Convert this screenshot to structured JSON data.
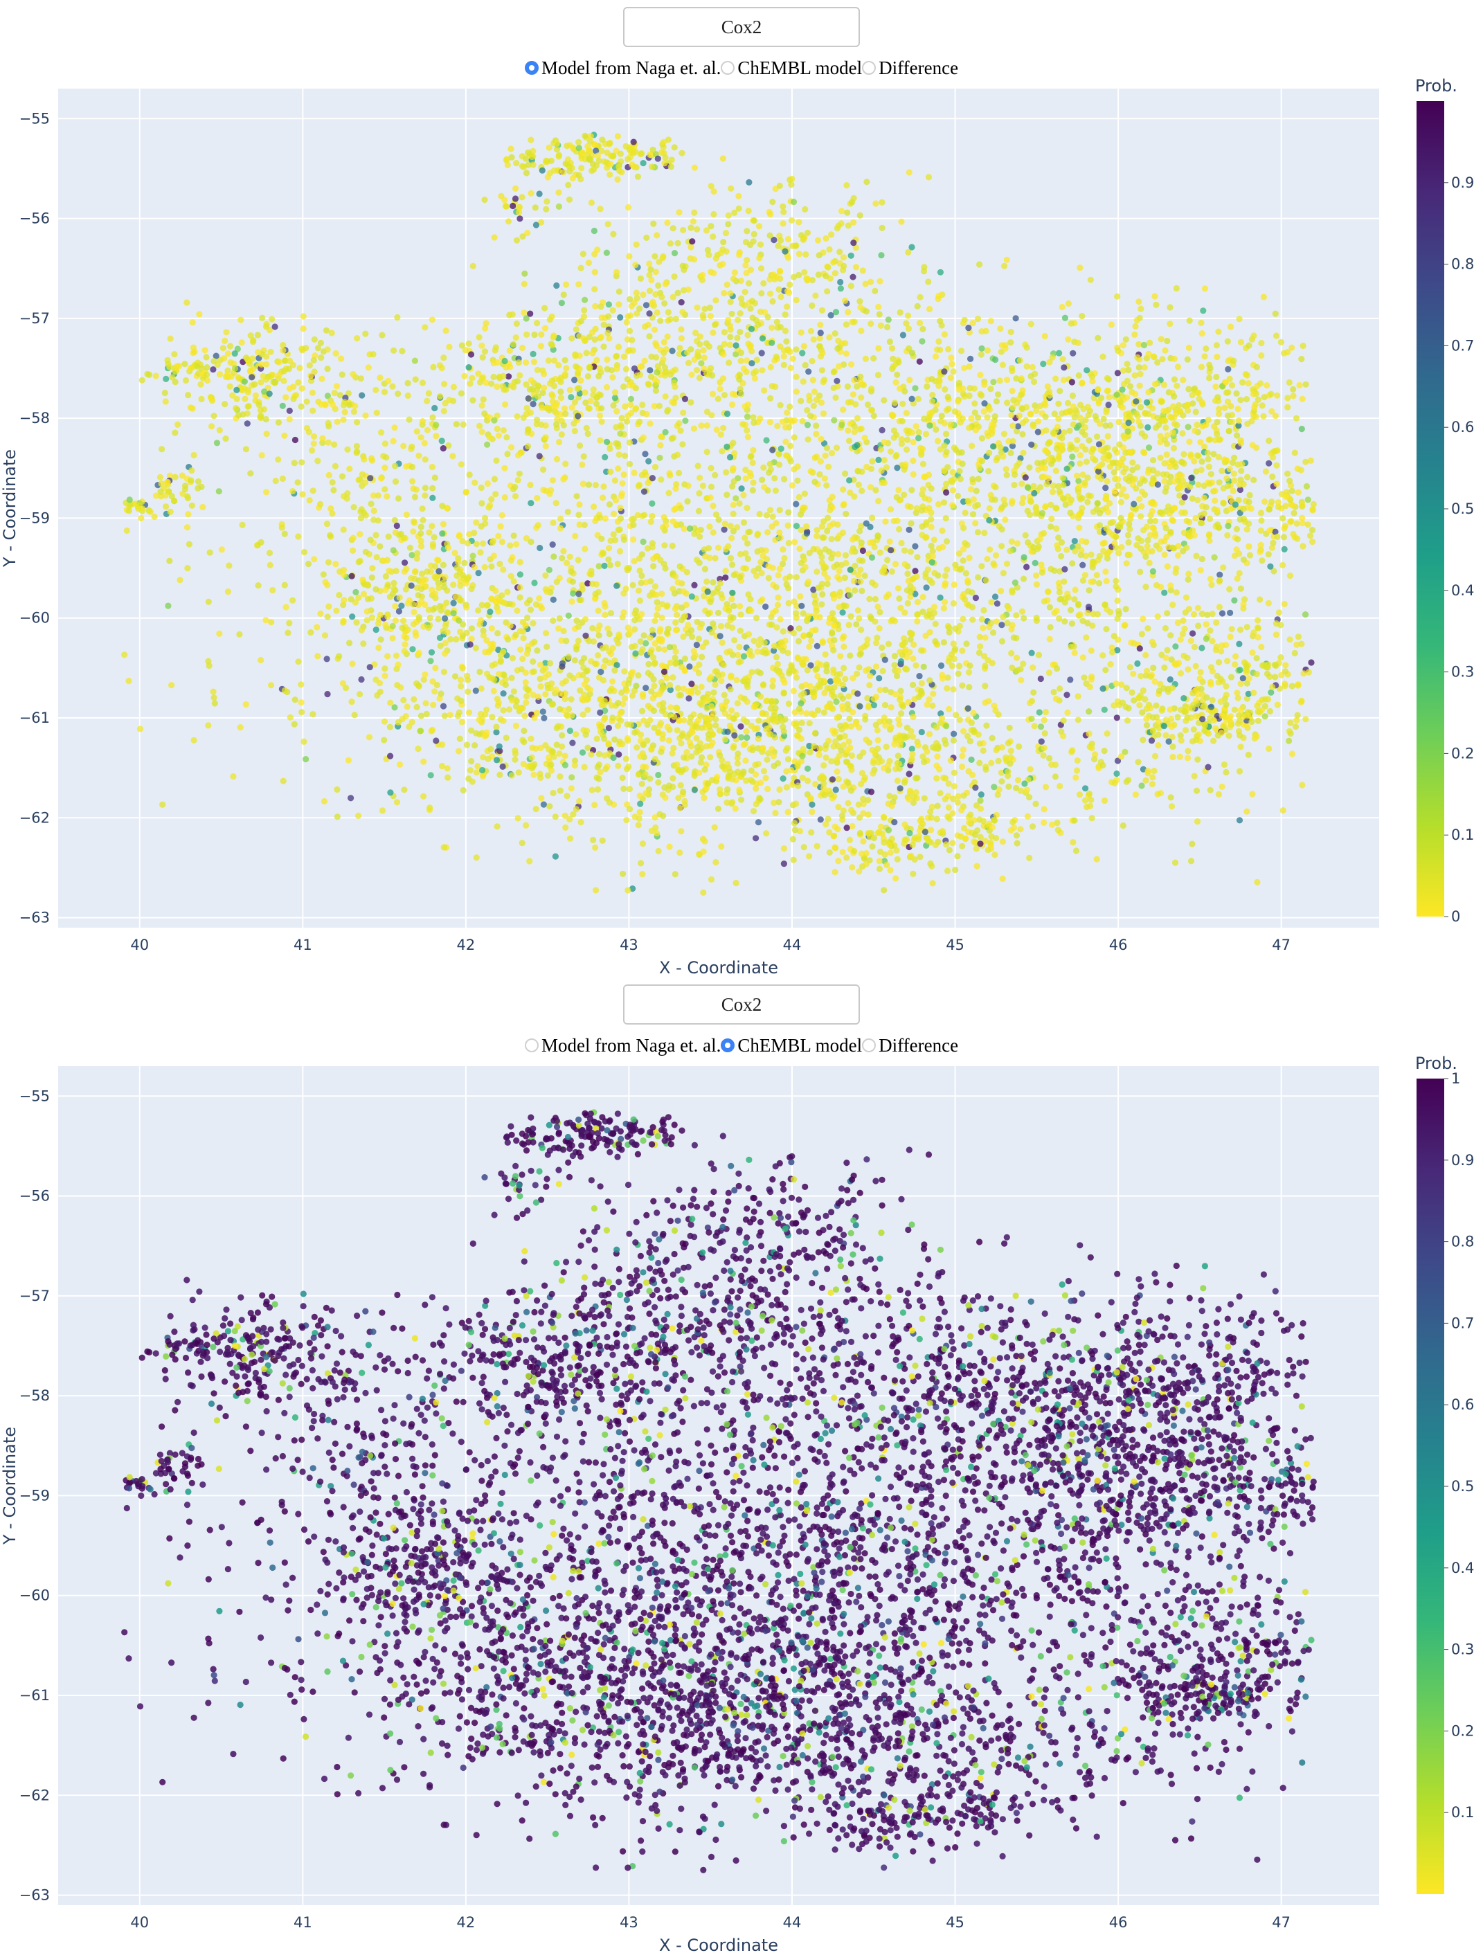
{
  "colors": {
    "plot_bg": "#e5ecf6",
    "grid": "#ffffff",
    "axis_text": "#2a3f5f",
    "viridis": [
      "#fde725",
      "#b5de2b",
      "#6ece58",
      "#35b779",
      "#1f9e89",
      "#26828e",
      "#31688e",
      "#3e4989",
      "#482878",
      "#440154"
    ]
  },
  "panels": [
    {
      "dropdown_label": "Cox2",
      "radio_options": [
        "Model from Naga et. al.",
        "ChEMBL model",
        "Difference"
      ],
      "selected_index": 0
    },
    {
      "dropdown_label": "Cox2",
      "radio_options": [
        "Model from Naga et. al.",
        "ChEMBL model",
        "Difference"
      ],
      "selected_index": 1
    }
  ],
  "chart_data": [
    {
      "type": "scatter",
      "title": "",
      "xlabel": "X - Coordinate",
      "ylabel": "Y - Coordinate",
      "xlim": [
        39.5,
        47.6
      ],
      "ylim": [
        -63.1,
        -54.7
      ],
      "xticks": [
        40,
        41,
        42,
        43,
        44,
        45,
        46,
        47
      ],
      "yticks": [
        -55,
        -56,
        -57,
        -58,
        -59,
        -60,
        -61,
        -62,
        -63
      ],
      "colorbar": {
        "title": "Prob.",
        "range": [
          0,
          1
        ],
        "ticks": [
          0,
          0.1,
          0.2,
          0.3,
          0.4,
          0.5,
          0.6,
          0.7,
          0.8,
          0.9
        ],
        "tick_labels": [
          "0",
          "0.1",
          "0.2",
          "0.3",
          "0.4",
          "0.5",
          "0.6",
          "0.7",
          "0.8",
          "0.9"
        ]
      },
      "series": [
        {
          "name": "Model from Naga et. al.",
          "color_by": "Prob.",
          "dominant_prob": 0.0,
          "note": "mostly near 0 with scattered high-probability points"
        }
      ],
      "clusters": [
        {
          "x": 44.0,
          "y": -59.6,
          "sx": 1.6,
          "sy": 1.15,
          "n": 2600
        },
        {
          "x": 43.1,
          "y": -60.9,
          "sx": 0.9,
          "sy": 0.55,
          "n": 700
        },
        {
          "x": 44.3,
          "y": -61.5,
          "sx": 0.9,
          "sy": 0.45,
          "n": 600
        },
        {
          "x": 45.6,
          "y": -58.0,
          "sx": 0.9,
          "sy": 0.55,
          "n": 700
        },
        {
          "x": 46.3,
          "y": -58.7,
          "sx": 0.5,
          "sy": 0.6,
          "n": 400
        },
        {
          "x": 46.6,
          "y": -60.7,
          "sx": 0.35,
          "sy": 0.35,
          "n": 250
        },
        {
          "x": 46.5,
          "y": -61.0,
          "sx": 0.2,
          "sy": 0.12,
          "n": 80
        },
        {
          "x": 43.5,
          "y": -57.3,
          "sx": 0.7,
          "sy": 0.4,
          "n": 400
        },
        {
          "x": 43.7,
          "y": -56.3,
          "sx": 0.5,
          "sy": 0.35,
          "n": 220
        },
        {
          "x": 42.9,
          "y": -55.35,
          "sx": 0.22,
          "sy": 0.1,
          "n": 110
        },
        {
          "x": 42.55,
          "y": -55.45,
          "sx": 0.18,
          "sy": 0.1,
          "n": 50
        },
        {
          "x": 42.35,
          "y": -55.85,
          "sx": 0.08,
          "sy": 0.2,
          "n": 25
        },
        {
          "x": 40.6,
          "y": -57.6,
          "sx": 0.25,
          "sy": 0.25,
          "n": 160
        },
        {
          "x": 40.25,
          "y": -57.55,
          "sx": 0.08,
          "sy": 0.05,
          "n": 25
        },
        {
          "x": 41.1,
          "y": -57.6,
          "sx": 0.3,
          "sy": 0.35,
          "n": 70
        },
        {
          "x": 40.25,
          "y": -58.7,
          "sx": 0.12,
          "sy": 0.1,
          "n": 35
        },
        {
          "x": 39.98,
          "y": -58.9,
          "sx": 0.08,
          "sy": 0.05,
          "n": 25
        },
        {
          "x": 41.4,
          "y": -58.4,
          "sx": 0.4,
          "sy": 0.4,
          "n": 100
        },
        {
          "x": 41.7,
          "y": -59.7,
          "sx": 0.3,
          "sy": 0.4,
          "n": 220
        },
        {
          "x": 42.5,
          "y": -57.7,
          "sx": 0.35,
          "sy": 0.3,
          "n": 200
        },
        {
          "x": 44.6,
          "y": -62.3,
          "sx": 0.25,
          "sy": 0.12,
          "n": 80
        },
        {
          "x": 45.15,
          "y": -62.1,
          "sx": 0.12,
          "sy": 0.12,
          "n": 40
        },
        {
          "x": 47.0,
          "y": -58.9,
          "sx": 0.12,
          "sy": 0.2,
          "n": 40
        },
        {
          "x": 46.9,
          "y": -57.8,
          "sx": 0.15,
          "sy": 0.1,
          "n": 20
        },
        {
          "x": 42.4,
          "y": -61.5,
          "sx": 0.05,
          "sy": 0.05,
          "n": 10
        }
      ]
    },
    {
      "type": "scatter",
      "title": "",
      "xlabel": "X - Coordinate",
      "ylabel": "Y - Coordinate",
      "xlim": [
        39.5,
        47.6
      ],
      "ylim": [
        -63.1,
        -54.7
      ],
      "xticks": [
        40,
        41,
        42,
        43,
        44,
        45,
        46,
        47
      ],
      "yticks": [
        -55,
        -56,
        -57,
        -58,
        -59,
        -60,
        -61,
        -62,
        -63
      ],
      "colorbar": {
        "title": "Prob.",
        "range": [
          0,
          1
        ],
        "ticks": [
          0.1,
          0.2,
          0.3,
          0.4,
          0.5,
          0.6,
          0.7,
          0.8,
          0.9,
          1
        ],
        "tick_labels": [
          "0.1",
          "0.2",
          "0.3",
          "0.4",
          "0.5",
          "0.6",
          "0.7",
          "0.8",
          "0.9",
          "1"
        ]
      },
      "series": [
        {
          "name": "ChEMBL model",
          "color_by": "Prob.",
          "dominant_prob": 1.0,
          "note": "mostly near 1 with scattered low-probability points"
        }
      ]
    }
  ]
}
